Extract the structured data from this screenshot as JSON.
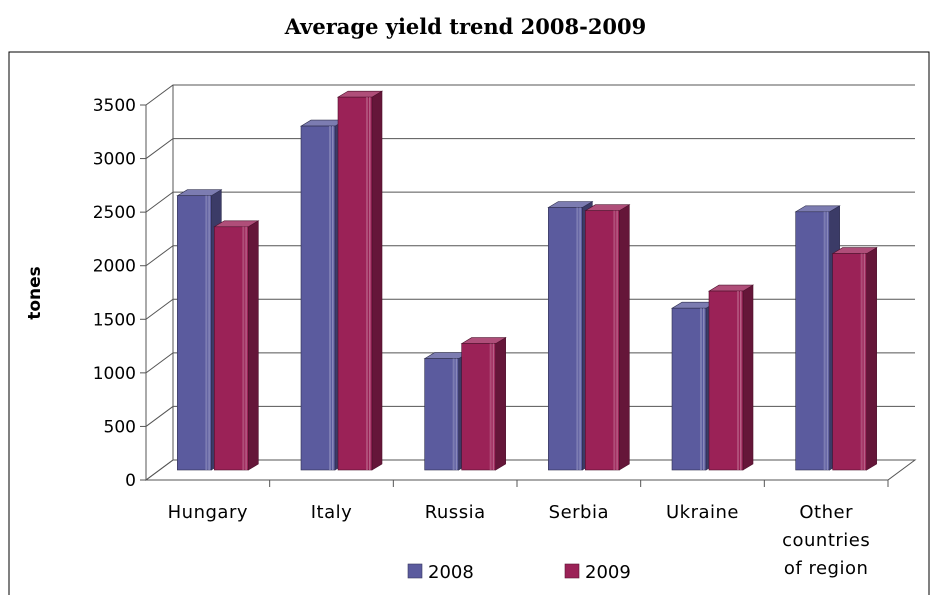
{
  "chart_data": {
    "type": "bar",
    "title": "Average yield trend 2008-2009",
    "xlabel": "",
    "ylabel": "tones",
    "categories": [
      "Hungary",
      "Italy",
      "Russia",
      "Serbia",
      "Ukraine",
      "Other countries of region"
    ],
    "category_lines": [
      [
        "Hungary"
      ],
      [
        "Italy"
      ],
      [
        "Russia"
      ],
      [
        "Serbia"
      ],
      [
        "Ukraine"
      ],
      [
        "Other",
        "countries",
        "of region"
      ]
    ],
    "series": [
      {
        "name": "2008",
        "values": [
          2560,
          3210,
          1040,
          2450,
          1510,
          2410
        ],
        "color": "#5b5b9e"
      },
      {
        "name": "2009",
        "values": [
          2270,
          3480,
          1180,
          2420,
          1670,
          2020
        ],
        "color": "#9b2257"
      }
    ],
    "ylim": [
      0,
      3500
    ],
    "yticks": [
      0,
      500,
      1000,
      1500,
      2000,
      2500,
      3000,
      3500
    ],
    "grid": true,
    "legend_position": "bottom"
  }
}
